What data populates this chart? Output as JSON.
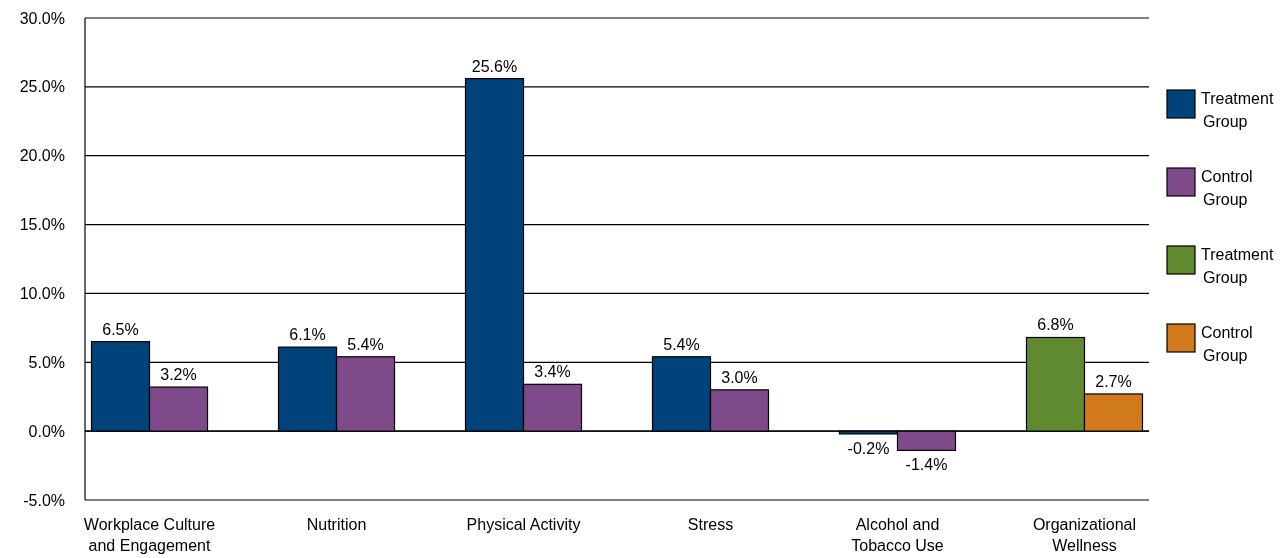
{
  "chart_data": {
    "type": "bar",
    "categories": [
      "Workplace Culture and Engagement",
      "Nutrition",
      "Physical Activity",
      "Stress",
      "Alcohol and Tobacco Use",
      "Organizational Wellness"
    ],
    "series": [
      {
        "name": "Treatment Group",
        "color": "#00427a",
        "values": [
          6.5,
          6.1,
          25.6,
          5.4,
          -0.2,
          null
        ],
        "value_labels": [
          "6.5%",
          "6.1%",
          "25.6%",
          "5.4%",
          "-0.2%",
          null
        ]
      },
      {
        "name": "Control Group",
        "color": "#7f4a89",
        "values": [
          3.2,
          5.4,
          3.4,
          3.0,
          -1.4,
          null
        ],
        "value_labels": [
          "3.2%",
          "5.4%",
          "3.4%",
          "3.0%",
          "-1.4%",
          null
        ]
      },
      {
        "name": "Treatment Group",
        "color": "#5f8a2f",
        "values": [
          null,
          null,
          null,
          null,
          null,
          6.8
        ],
        "value_labels": [
          null,
          null,
          null,
          null,
          null,
          "6.8%"
        ]
      },
      {
        "name": "Control Group",
        "color": "#d17a1c",
        "values": [
          null,
          null,
          null,
          null,
          null,
          2.7
        ],
        "value_labels": [
          null,
          null,
          null,
          null,
          null,
          "2.7%"
        ]
      }
    ],
    "ylim": [
      -5,
      30
    ],
    "yticks": [
      {
        "value": -5,
        "label": "-5.0%"
      },
      {
        "value": 0,
        "label": "0.0%"
      },
      {
        "value": 5,
        "label": "5.0%"
      },
      {
        "value": 10,
        "label": "10.0%"
      },
      {
        "value": 15,
        "label": "15.0%"
      },
      {
        "value": 20,
        "label": "20.0%"
      },
      {
        "value": 25,
        "label": "25.0%"
      },
      {
        "value": 30,
        "label": "30.0%"
      }
    ],
    "grid": "y",
    "legend": "right"
  }
}
